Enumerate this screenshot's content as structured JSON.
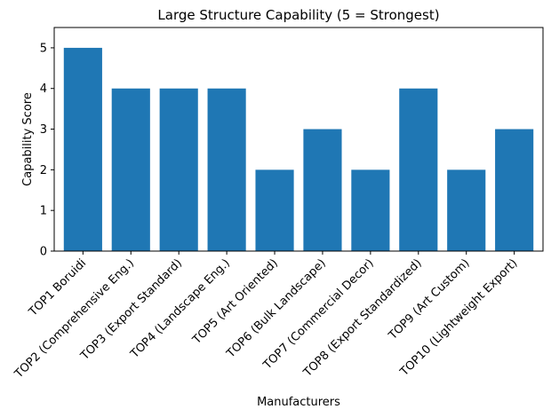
{
  "chart_data": {
    "type": "bar",
    "title": "Large Structure Capability (5 = Strongest)",
    "xlabel": "Manufacturers",
    "ylabel": "Capability Score",
    "categories": [
      "TOP1 Boruidi",
      "TOP2 (Comprehensive Eng.)",
      "TOP3 (Export Standard)",
      "TOP4 (Landscape Eng.)",
      "TOP5 (Art Oriented)",
      "TOP6 (Bulk Landscape)",
      "TOP7 (Commercial Decor)",
      "TOP8 (Export Standardized)",
      "TOP9 (Art Custom)",
      "TOP10 (Lightweight Export)"
    ],
    "values": [
      5,
      4,
      4,
      4,
      2,
      3,
      2,
      4,
      2,
      3
    ],
    "ylim": [
      0,
      5.5
    ],
    "yticks": [
      0,
      1,
      2,
      3,
      4,
      5
    ],
    "bar_color": "#1f77b4",
    "grid": false,
    "legend": false
  }
}
